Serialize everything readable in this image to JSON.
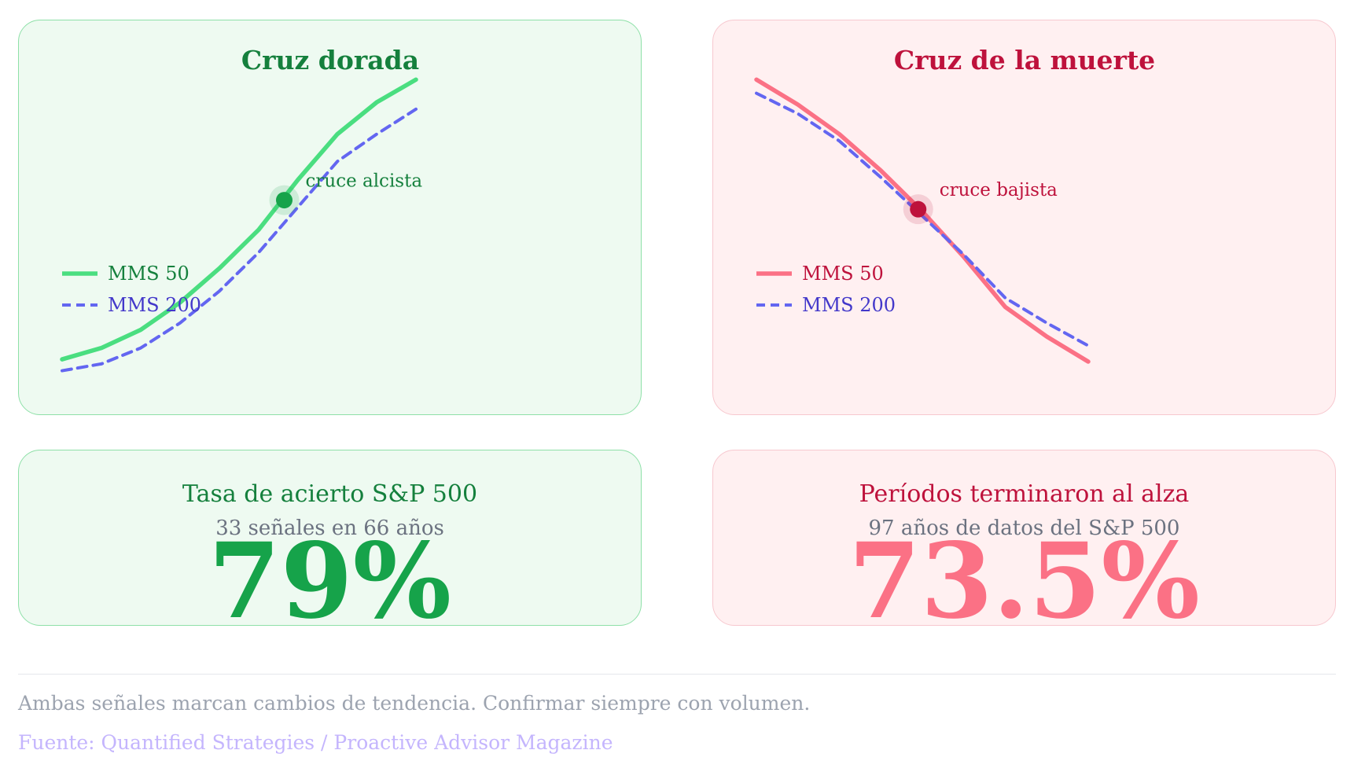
{
  "colors": {
    "green_line": "#4ade80",
    "green_dark": "#15803d",
    "green_dot": "#16a34a",
    "red_line": "#fb7185",
    "red_dark": "#be123c",
    "red_dot": "#be123c",
    "blue_line": "#6366f1",
    "blue_text": "#4338ca"
  },
  "chart_data": [
    {
      "type": "line",
      "title": "Cruz dorada",
      "x": [
        0,
        1,
        2,
        3,
        4,
        5,
        6,
        7,
        8,
        9
      ],
      "series": [
        {
          "name": "MMS 50",
          "style": "solid",
          "values": [
            5,
            10,
            18,
            30,
            45,
            62,
            84,
            104,
            118,
            128
          ]
        },
        {
          "name": "MMS 200",
          "style": "dashed",
          "values": [
            0,
            3,
            10,
            21,
            35,
            52,
            72,
            92,
            104,
            115
          ]
        }
      ],
      "annotation": {
        "label": "cruce alcista",
        "x": 5.65,
        "y": 75
      },
      "ylim": [
        -5,
        135
      ],
      "legend": "left"
    },
    {
      "type": "line",
      "title": "Cruz de la muerte",
      "x": [
        0,
        1,
        2,
        3,
        4,
        5,
        6,
        7,
        8
      ],
      "series": [
        {
          "name": "MMS 50",
          "style": "solid",
          "values": [
            128,
            117,
            104,
            88,
            70,
            50,
            28,
            15,
            4
          ]
        },
        {
          "name": "MMS 200",
          "style": "dashed",
          "values": [
            122,
            113,
            101,
            85,
            68,
            51,
            32,
            21,
            11
          ]
        }
      ],
      "annotation": {
        "label": "cruce bajista",
        "x": 3.9,
        "y": 71
      },
      "ylim": [
        -5,
        135
      ],
      "legend": "left"
    }
  ],
  "stats": {
    "golden": {
      "title": "Tasa de acierto S&P 500",
      "subtitle": "33 señales en 66 años",
      "value": "79%"
    },
    "death": {
      "title": "Períodos terminaron al alza",
      "subtitle": "97 años de datos del S&P 500",
      "value": "73.5%"
    }
  },
  "footer": {
    "note": "Ambas señales marcan cambios de tendencia. Confirmar siempre con volumen.",
    "source": "Fuente: Quantified Strategies / Proactive Advisor Magazine"
  }
}
